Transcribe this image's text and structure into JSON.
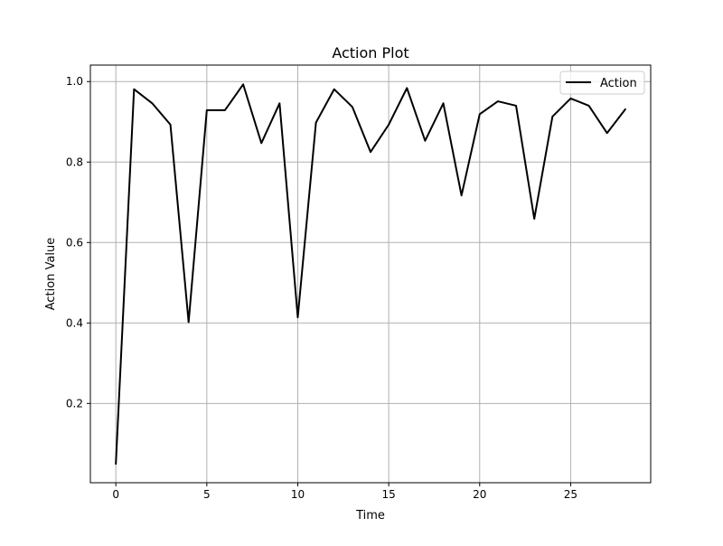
{
  "chart_data": {
    "type": "line",
    "title": "Action Plot",
    "xlabel": "Time",
    "ylabel": "Action Value",
    "x": [
      0,
      1,
      2,
      3,
      4,
      5,
      6,
      7,
      8,
      9,
      10,
      11,
      12,
      13,
      14,
      15,
      16,
      17,
      18,
      19,
      20,
      21,
      22,
      23,
      24,
      25,
      26,
      27,
      28
    ],
    "series": [
      {
        "name": "Action",
        "color": "#000000",
        "values": [
          0.05,
          0.981,
          0.946,
          0.893,
          0.402,
          0.929,
          0.929,
          0.993,
          0.847,
          0.946,
          0.414,
          0.898,
          0.981,
          0.937,
          0.825,
          0.893,
          0.984,
          0.853,
          0.946,
          0.717,
          0.919,
          0.951,
          0.94,
          0.659,
          0.913,
          0.958,
          0.94,
          0.872,
          0.931
        ]
      }
    ],
    "xlim": [
      -1.4,
      29.4
    ],
    "ylim": [
      0.003,
      1.041
    ],
    "xticks": [
      0,
      5,
      10,
      15,
      20,
      25
    ],
    "yticks": [
      0.2,
      0.4,
      0.6,
      0.8,
      1.0
    ],
    "ytick_labels": [
      "0.2",
      "0.4",
      "0.6",
      "0.8",
      "1.0"
    ],
    "grid": true,
    "legend": "top-right"
  }
}
